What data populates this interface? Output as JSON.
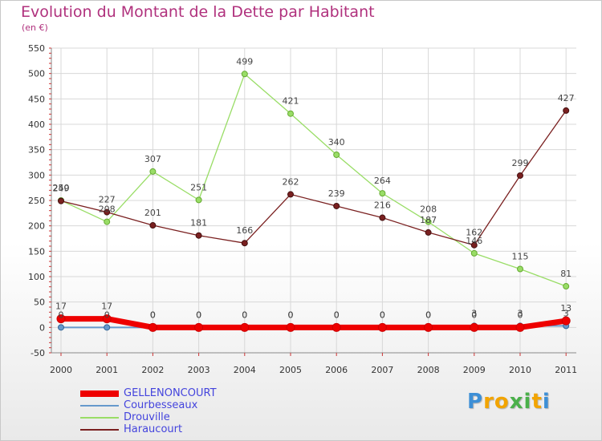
{
  "colors": {
    "title": "#b0317d",
    "legend_text": "#4444dd",
    "grid": "#d8d8d8",
    "axis_tick": "#cc3333"
  },
  "chart_data": {
    "type": "line",
    "title": "Evolution du Montant de la Dette par Habitant",
    "subtitle": "(en €)",
    "xlabel": "",
    "ylabel": "",
    "x": [
      "2000",
      "2001",
      "2002",
      "2003",
      "2004",
      "2005",
      "2006",
      "2007",
      "2008",
      "2009",
      "2010",
      "2011"
    ],
    "ylim": [
      -50,
      550
    ],
    "yticks": [
      -50,
      0,
      50,
      100,
      150,
      200,
      250,
      300,
      350,
      400,
      450,
      500,
      550
    ],
    "grid": true,
    "legend_position": "bottom-left",
    "series": [
      {
        "name": "GELLENONCOURT",
        "color": "#ee0000",
        "values": [
          17,
          17,
          0,
          0,
          0,
          0,
          0,
          0,
          0,
          0,
          0,
          13
        ],
        "labels": [
          "17",
          "17",
          "0",
          "0",
          "0",
          "0",
          "0",
          "0",
          "0",
          "0",
          "0",
          "13"
        ]
      },
      {
        "name": "Courbesseaux",
        "color": "#6699cc",
        "values": [
          0,
          0,
          0,
          0,
          0,
          0,
          0,
          0,
          0,
          3,
          3,
          3
        ],
        "labels": [
          "0",
          "0",
          "0",
          "0",
          "0",
          "0",
          "0",
          "0",
          "0",
          "3",
          "3",
          "3"
        ]
      },
      {
        "name": "Drouville",
        "color": "#99dd66",
        "values": [
          250,
          208,
          307,
          251,
          499,
          421,
          340,
          264,
          208,
          146,
          115,
          81
        ],
        "labels": [
          "250",
          "208",
          "307",
          "251",
          "499",
          "421",
          "340",
          "264",
          "208",
          "146",
          "115",
          "81"
        ]
      },
      {
        "name": "Haraucourt",
        "color": "#7a2020",
        "values": [
          249,
          227,
          201,
          181,
          166,
          262,
          239,
          216,
          187,
          162,
          299,
          427
        ],
        "labels": [
          "249",
          "227",
          "201",
          "181",
          "166",
          "262",
          "239",
          "216",
          "187",
          "162",
          "299",
          "427"
        ]
      }
    ]
  },
  "logo": {
    "letters": [
      "P",
      "r",
      "o",
      "x",
      "i",
      "t",
      "i"
    ],
    "colors": [
      "#3d8fd6",
      "#f2a400",
      "#f2a400",
      "#4ab04a",
      "#4ab04a",
      "#f2a400",
      "#3d8fd6"
    ]
  }
}
